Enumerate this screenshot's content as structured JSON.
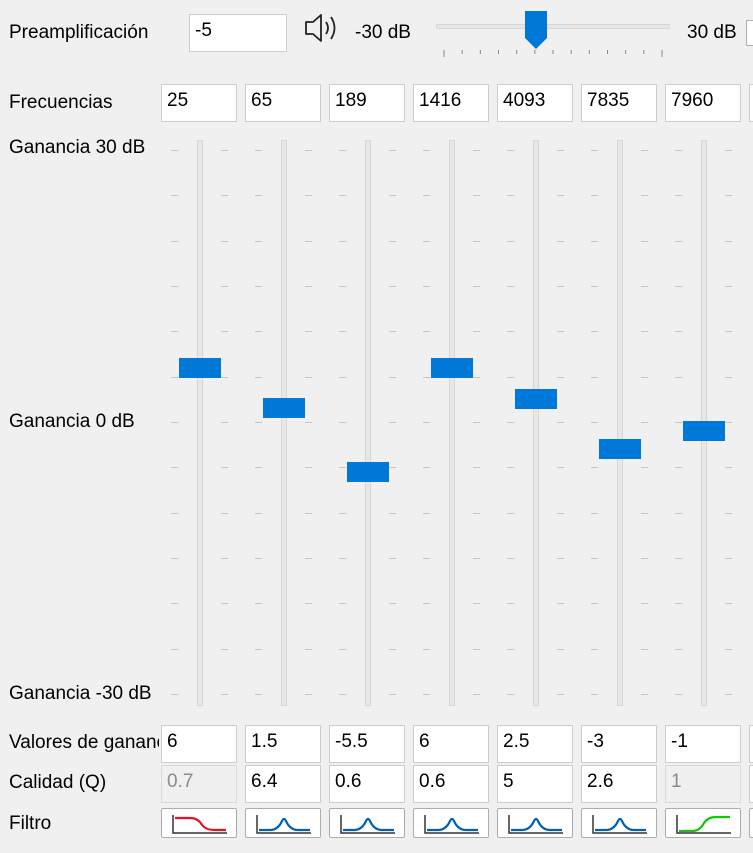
{
  "preamp": {
    "label": "Preamplificación",
    "value": "-5",
    "min_label": "-30 dB",
    "max_label": "30 dB",
    "slider_min": -30,
    "slider_max": 30,
    "slider_value": -5,
    "icon": "speaker-icon"
  },
  "frequencies": {
    "label": "Frecuencias",
    "values": [
      "25",
      "65",
      "189",
      "1416",
      "4093",
      "7835",
      "7960"
    ]
  },
  "gain_axis": {
    "top_label": "Ganancia 30 dB",
    "mid_label": "Ganancia 0 dB",
    "bottom_label": "Ganancia -30 dB",
    "min": -30,
    "max": 30
  },
  "bands": [
    {
      "gain": 6,
      "quality": "0.7",
      "quality_disabled": true,
      "filter": "lowpass"
    },
    {
      "gain": 1.5,
      "quality": "6.4",
      "quality_disabled": false,
      "filter": "peak"
    },
    {
      "gain": -5.5,
      "quality": "0.6",
      "quality_disabled": false,
      "filter": "peak"
    },
    {
      "gain": 6,
      "quality": "0.6",
      "quality_disabled": false,
      "filter": "peak"
    },
    {
      "gain": 2.5,
      "quality": "5",
      "quality_disabled": false,
      "filter": "peak"
    },
    {
      "gain": -3,
      "quality": "2.6",
      "quality_disabled": false,
      "filter": "peak"
    },
    {
      "gain": -1,
      "quality": "1",
      "quality_disabled": true,
      "filter": "highshelf"
    }
  ],
  "gains": {
    "label": "Valores de ganancia",
    "values": [
      "6",
      "1.5",
      "-5.5",
      "6",
      "2.5",
      "-3",
      "-1"
    ]
  },
  "quality": {
    "label": "Calidad (Q)"
  },
  "filter": {
    "label": "Filtro"
  },
  "colors": {
    "accent": "#0078d7",
    "lowpass": "#e81123",
    "peak": "#0063b1",
    "highshelf": "#16c60c"
  }
}
